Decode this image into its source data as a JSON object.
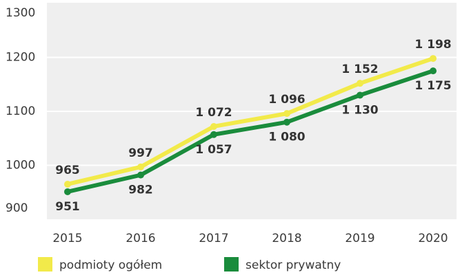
{
  "chart_data": {
    "type": "line",
    "x": [
      2015,
      2016,
      2017,
      2018,
      2019,
      2020
    ],
    "series": [
      {
        "name": "podmioty ogółem",
        "color": "#f2ea4a",
        "values": [
          965,
          997,
          1072,
          1096,
          1152,
          1198
        ],
        "value_labels": [
          "965",
          "997",
          "1 072",
          "1 096",
          "1 152",
          "1 198"
        ]
      },
      {
        "name": "sektor prywatny",
        "color": "#1a8c3c",
        "values": [
          951,
          982,
          1057,
          1080,
          1130,
          1175
        ],
        "value_labels": [
          "951",
          "982",
          "1 057",
          "1 080",
          "1 130",
          "1 175"
        ]
      }
    ],
    "xlim": [
      2015,
      2020
    ],
    "ylim": [
      900,
      1300
    ],
    "yticks": [
      900,
      1000,
      1100,
      1200,
      1300
    ],
    "grid": true
  }
}
